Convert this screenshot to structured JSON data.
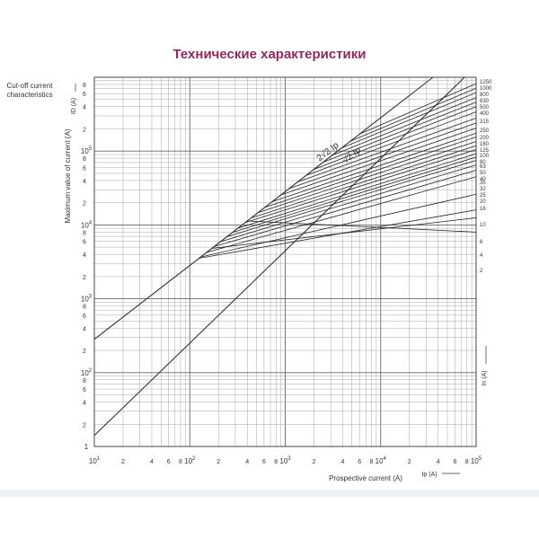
{
  "page": {
    "title": "Технические характеристики"
  },
  "chart_data": {
    "type": "line",
    "title": "Cut-off current characteristics",
    "title_lines": [
      "Cut-off current",
      "characteristics"
    ],
    "xlabel": "Prospective current (A)",
    "x_symbol": "Ip",
    "x_unit": "(A)",
    "ylabel": "Maximum value of current (A)",
    "y_symbol": "ID",
    "y_unit": "(A)",
    "right_symbol": "In",
    "right_unit": "(A)",
    "x_scale": "log",
    "y_scale": "log",
    "xlim": [
      10,
      100000
    ],
    "ylim": [
      1,
      100000
    ],
    "x_decade_ticks": [
      {
        "base": "10",
        "exp": "1"
      },
      {
        "base": "10",
        "exp": "2"
      },
      {
        "base": "10",
        "exp": "3"
      },
      {
        "base": "10",
        "exp": "4"
      },
      {
        "base": "10",
        "exp": "5"
      }
    ],
    "y_decade_ticks": [
      {
        "base": "1",
        "exp": ""
      },
      {
        "base": "10",
        "exp": "2"
      },
      {
        "base": "10",
        "exp": "3"
      },
      {
        "base": "10",
        "exp": "4"
      },
      {
        "base": "10",
        "exp": "5"
      }
    ],
    "minor_tick_labels": [
      "2",
      "4",
      "6",
      "8"
    ],
    "grid": true,
    "reference_lines": [
      {
        "label": "2√2 Ip",
        "points": [
          [
            10,
            28.3
          ],
          [
            100000,
            282843
          ]
        ]
      },
      {
        "label": "√2 Ip",
        "points": [
          [
            10,
            1.41
          ],
          [
            100000,
            141421
          ]
        ]
      }
    ],
    "series": [
      {
        "name": "2",
        "start_x": 400,
        "end_y": 800
      },
      {
        "name": "4",
        "start_x": 170,
        "end_y": 1250
      },
      {
        "name": "6",
        "start_x": 125,
        "end_y": 1600
      },
      {
        "name": "10",
        "start_x": 130,
        "end_y": 2600
      },
      {
        "name": "16",
        "start_x": 150,
        "end_y": 4500
      },
      {
        "name": "20",
        "start_x": 180,
        "end_y": 5500
      },
      {
        "name": "25",
        "start_x": 210,
        "end_y": 6500
      },
      {
        "name": "32",
        "start_x": 245,
        "end_y": 7500
      },
      {
        "name": "35",
        "start_x": 280,
        "end_y": 8300
      },
      {
        "name": "40",
        "start_x": 320,
        "end_y": 9200
      },
      {
        "name": "50",
        "start_x": 380,
        "end_y": 10500
      },
      {
        "name": "63",
        "start_x": 440,
        "end_y": 11800
      },
      {
        "name": "80",
        "start_x": 520,
        "end_y": 13500
      },
      {
        "name": "100",
        "start_x": 610,
        "end_y": 15500
      },
      {
        "name": "125",
        "start_x": 730,
        "end_y": 17500
      },
      {
        "name": "160",
        "start_x": 900,
        "end_y": 20500
      },
      {
        "name": "200",
        "start_x": 1100,
        "end_y": 24000
      },
      {
        "name": "250",
        "start_x": 1350,
        "end_y": 28000
      },
      {
        "name": "315",
        "start_x": 1650,
        "end_y": 34000
      },
      {
        "name": "400",
        "start_x": 2000,
        "end_y": 40000
      },
      {
        "name": "500",
        "start_x": 2500,
        "end_y": 46000
      },
      {
        "name": "630",
        "start_x": 3100,
        "end_y": 53000
      },
      {
        "name": "800",
        "start_x": 3900,
        "end_y": 62000
      },
      {
        "name": "1000",
        "start_x": 4800,
        "end_y": 71000
      },
      {
        "name": "1250",
        "start_x": 6000,
        "end_y": 82000
      }
    ]
  }
}
